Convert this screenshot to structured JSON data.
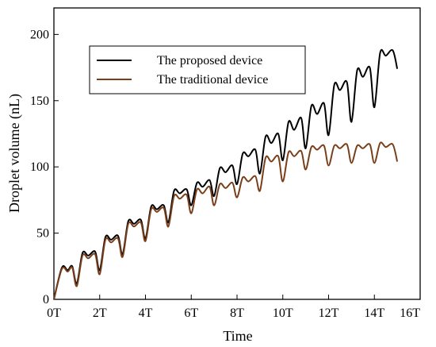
{
  "chart_data": {
    "type": "line",
    "xlabel": "Time",
    "ylabel": "Droplet volume (nL)",
    "xlim": [
      0,
      16
    ],
    "ylim": [
      0,
      220
    ],
    "grid": false,
    "legend_position": "top-left",
    "x_ticks": [
      {
        "value": 0,
        "label": "0T"
      },
      {
        "value": 2,
        "label": "2T"
      },
      {
        "value": 4,
        "label": "4T"
      },
      {
        "value": 6,
        "label": "6T"
      },
      {
        "value": 8,
        "label": "8T"
      },
      {
        "value": 10,
        "label": "10T"
      },
      {
        "value": 12,
        "label": "12T"
      },
      {
        "value": 14,
        "label": "14T"
      },
      {
        "value": 16,
        "label": "16T"
      }
    ],
    "y_ticks": [
      {
        "value": 0,
        "label": "0"
      },
      {
        "value": 50,
        "label": "50"
      },
      {
        "value": 100,
        "label": "100"
      },
      {
        "value": 150,
        "label": "150"
      },
      {
        "value": 200,
        "label": "200"
      }
    ],
    "series": [
      {
        "name": "The proposed device",
        "color": "#000000",
        "x": [
          0,
          0.35,
          0.6,
          0.8,
          1.0,
          1.25,
          1.5,
          1.8,
          2.0,
          2.25,
          2.5,
          2.8,
          3.0,
          3.25,
          3.5,
          3.8,
          4.0,
          4.25,
          4.5,
          4.8,
          5.0,
          5.25,
          5.5,
          5.8,
          6.0,
          6.25,
          6.5,
          6.8,
          7.0,
          7.25,
          7.5,
          7.8,
          8.0,
          8.25,
          8.5,
          8.8,
          9.0,
          9.25,
          9.5,
          9.8,
          10.0,
          10.25,
          10.5,
          10.8,
          11.0,
          11.25,
          11.5,
          11.8,
          12.0,
          12.25,
          12.5,
          12.8,
          13.0,
          13.25,
          13.5,
          13.8,
          14.0,
          14.25,
          14.5,
          14.8,
          15.0
        ],
        "y": [
          0,
          24,
          22,
          25,
          12,
          35,
          33,
          36,
          22,
          47,
          45,
          48,
          34,
          59,
          57,
          60,
          46,
          70,
          68,
          71,
          58,
          82,
          80,
          83,
          71,
          88,
          85,
          90,
          78,
          99,
          96,
          101,
          87,
          110,
          108,
          113,
          95,
          123,
          118,
          125,
          105,
          134,
          128,
          137,
          114,
          146,
          140,
          148,
          124,
          162,
          158,
          164,
          134,
          173,
          168,
          175,
          145,
          186,
          184,
          188,
          174
        ]
      },
      {
        "name": "The traditional device",
        "color": "#7a3f1a",
        "x": [
          0,
          0.35,
          0.6,
          0.8,
          1.0,
          1.25,
          1.5,
          1.8,
          2.0,
          2.25,
          2.5,
          2.8,
          3.0,
          3.25,
          3.5,
          3.8,
          4.0,
          4.25,
          4.5,
          4.8,
          5.0,
          5.25,
          5.5,
          5.8,
          6.0,
          6.25,
          6.5,
          6.8,
          7.0,
          7.25,
          7.5,
          7.8,
          8.0,
          8.25,
          8.5,
          8.8,
          9.0,
          9.25,
          9.5,
          9.8,
          10.0,
          10.25,
          10.5,
          10.8,
          11.0,
          11.25,
          11.5,
          11.8,
          12.0,
          12.25,
          12.5,
          12.8,
          13.0,
          13.25,
          13.5,
          13.8,
          14.0,
          14.25,
          14.5,
          14.8,
          15.0
        ],
        "y": [
          0,
          23,
          21,
          24,
          10,
          33,
          31,
          34,
          19,
          45,
          43,
          46,
          32,
          57,
          55,
          58,
          44,
          68,
          66,
          69,
          55,
          78,
          76,
          79,
          65,
          83,
          80,
          85,
          71,
          87,
          84,
          88,
          77,
          92,
          89,
          93,
          82,
          107,
          104,
          108,
          89,
          111,
          108,
          112,
          98,
          115,
          113,
          116,
          101,
          116,
          114,
          117,
          103,
          116,
          114,
          117,
          103,
          118,
          115,
          117,
          104
        ]
      }
    ]
  }
}
